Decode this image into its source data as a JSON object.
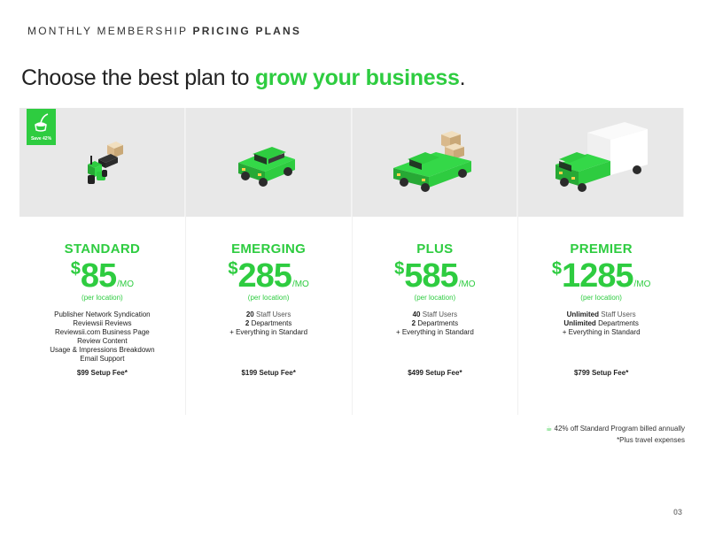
{
  "header": {
    "label_regular": "MONTHLY MEMBERSHIP",
    "label_bold": "PRICING PLANS"
  },
  "headline": {
    "text": "Choose the best plan to ",
    "accent": "grow your business",
    "end": "."
  },
  "badge": {
    "text": "Save 42%"
  },
  "plans": [
    {
      "name": "STANDARD",
      "currency": "$",
      "price": "85",
      "unit": "/MO",
      "per": "(per location)",
      "features": [
        "Publisher Network Syndication",
        "Reviewsii  Reviews",
        "Reviewsii.com Business Page",
        "Review Content",
        "Usage & Impressions Breakdown",
        "Email Support"
      ],
      "setup_fee": "$99 Setup Fee*"
    },
    {
      "name": "EMERGING",
      "currency": "$",
      "price": "285",
      "unit": "/MO",
      "per": "(per location)",
      "users_count": "20",
      "users_label": "Staff Users",
      "dept_count": "2",
      "dept_label": "Departments",
      "extra": "+ Everything in Standard",
      "setup_fee": "$199 Setup Fee*"
    },
    {
      "name": "PLUS",
      "currency": "$",
      "price": "585",
      "unit": "/MO",
      "per": "(per location)",
      "users_count": "40",
      "users_label": "Staff Users",
      "dept_count": "2",
      "dept_label": "Departments",
      "extra": "+ Everything in Standard",
      "setup_fee": "$499 Setup Fee*"
    },
    {
      "name": "PREMIER",
      "currency": "$",
      "price": "1285",
      "unit": "/MO",
      "per": "(per location)",
      "users_count": "Unlimited",
      "users_label": "Staff Users",
      "dept_count": "Unlimited",
      "dept_label": "Departments",
      "extra": "+ Everything in Standard",
      "setup_fee": "$799 Setup Fee*"
    }
  ],
  "footnote": {
    "line1": "42% off Standard Program billed annually",
    "line2": "*Plus travel expenses"
  },
  "page_number": "03",
  "colors": {
    "accent": "#2ecc40",
    "panel": "#e8e8e8"
  },
  "icons": [
    "scooter-icon",
    "small-truck-icon",
    "pickup-truck-icon",
    "box-truck-icon",
    "leaf-icon"
  ]
}
